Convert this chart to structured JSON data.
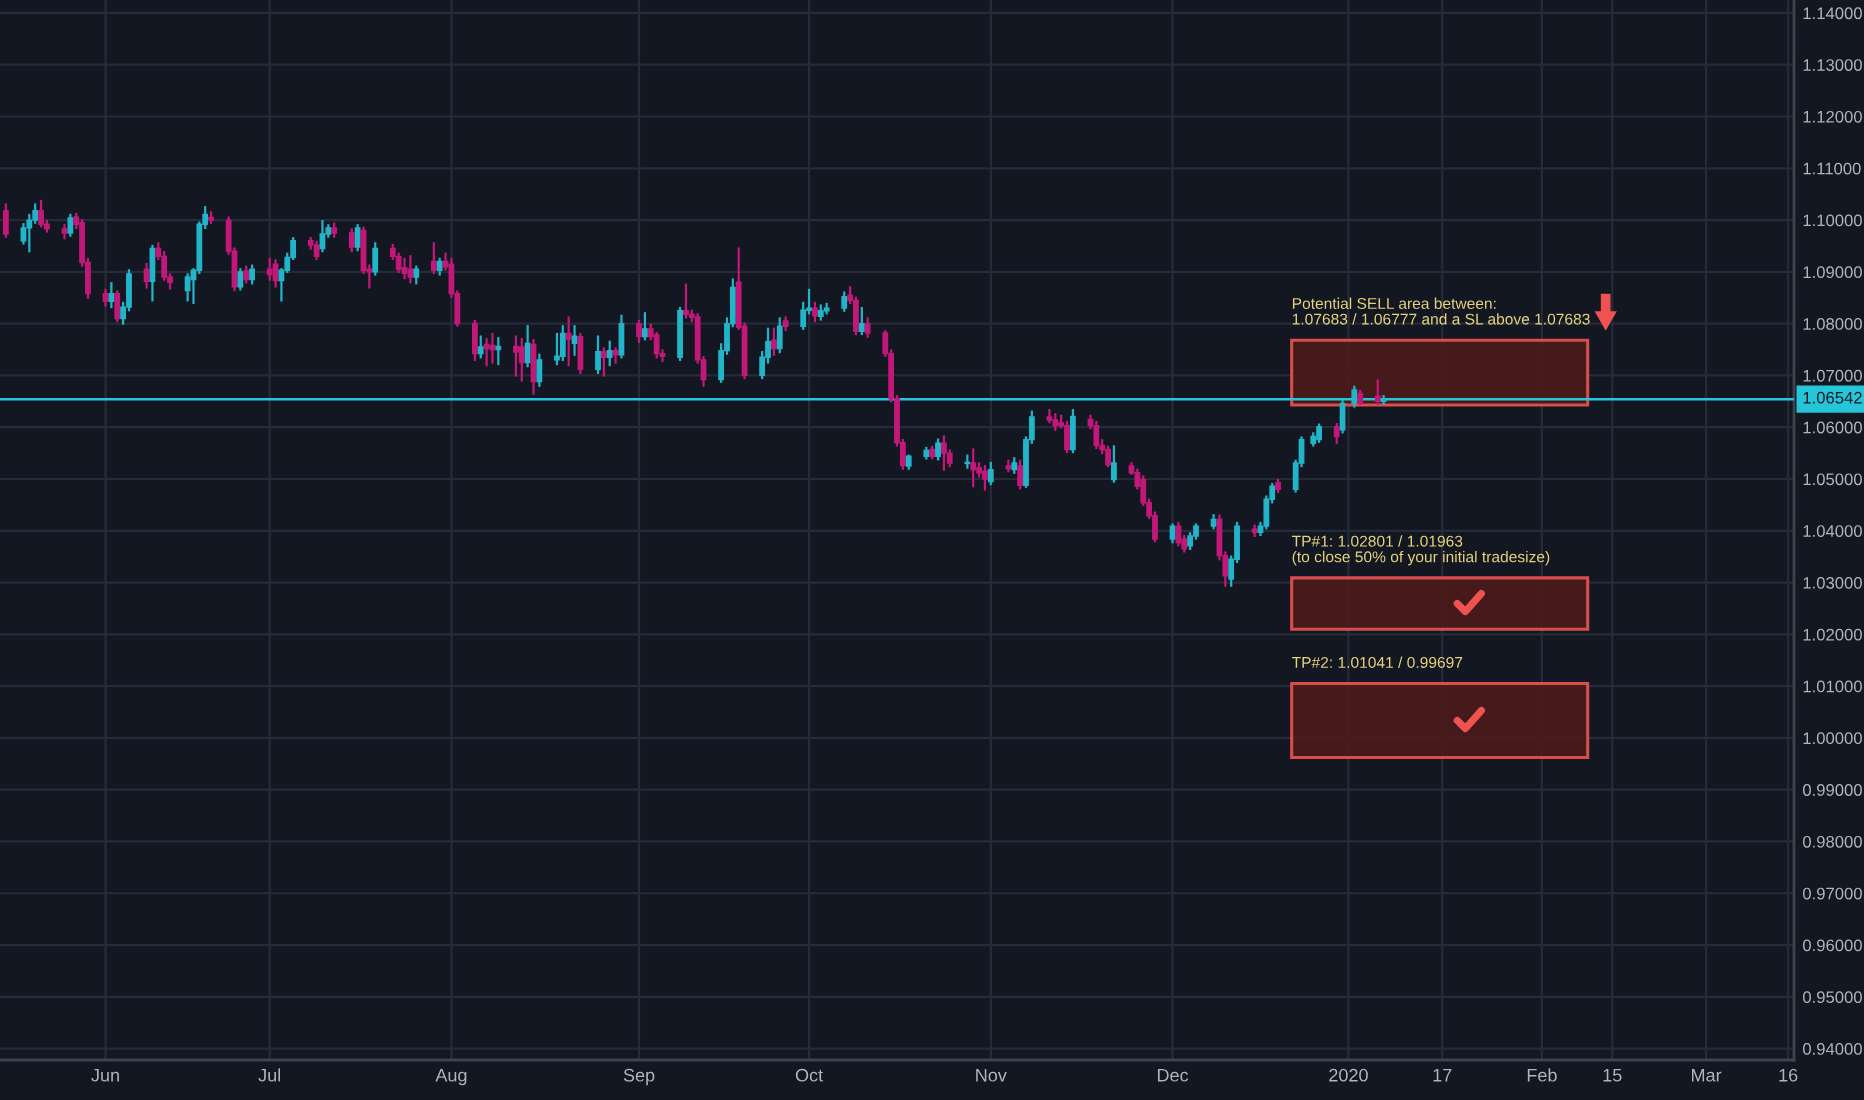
{
  "chart_data": {
    "type": "candlestick",
    "x": [
      "2019-05-17",
      "2019-05-20",
      "2019-05-21",
      "2019-05-22",
      "2019-05-23",
      "2019-05-24",
      "2019-05-27",
      "2019-05-28",
      "2019-05-29",
      "2019-05-30",
      "2019-05-31",
      "2019-06-03",
      "2019-06-04",
      "2019-06-05",
      "2019-06-06",
      "2019-06-07",
      "2019-06-10",
      "2019-06-11",
      "2019-06-12",
      "2019-06-13",
      "2019-06-14",
      "2019-06-17",
      "2019-06-18",
      "2019-06-19",
      "2019-06-20",
      "2019-06-21",
      "2019-06-24",
      "2019-06-25",
      "2019-06-26",
      "2019-06-27",
      "2019-06-28",
      "2019-07-01",
      "2019-07-02",
      "2019-07-03",
      "2019-07-04",
      "2019-07-05",
      "2019-07-08",
      "2019-07-09",
      "2019-07-10",
      "2019-07-11",
      "2019-07-12",
      "2019-07-15",
      "2019-07-16",
      "2019-07-17",
      "2019-07-18",
      "2019-07-19",
      "2019-07-22",
      "2019-07-23",
      "2019-07-24",
      "2019-07-25",
      "2019-07-26",
      "2019-07-29",
      "2019-07-30",
      "2019-07-31",
      "2019-08-01",
      "2019-08-02",
      "2019-08-05",
      "2019-08-06",
      "2019-08-07",
      "2019-08-08",
      "2019-08-09",
      "2019-08-12",
      "2019-08-13",
      "2019-08-14",
      "2019-08-15",
      "2019-08-16",
      "2019-08-19",
      "2019-08-20",
      "2019-08-21",
      "2019-08-22",
      "2019-08-23",
      "2019-08-26",
      "2019-08-27",
      "2019-08-28",
      "2019-08-29",
      "2019-08-30",
      "2019-09-02",
      "2019-09-03",
      "2019-09-04",
      "2019-09-05",
      "2019-09-06",
      "2019-09-09",
      "2019-09-10",
      "2019-09-11",
      "2019-09-12",
      "2019-09-13",
      "2019-09-16",
      "2019-09-17",
      "2019-09-18",
      "2019-09-19",
      "2019-09-20",
      "2019-09-23",
      "2019-09-24",
      "2019-09-25",
      "2019-09-26",
      "2019-09-27",
      "2019-09-30",
      "2019-10-01",
      "2019-10-02",
      "2019-10-03",
      "2019-10-04",
      "2019-10-07",
      "2019-10-08",
      "2019-10-09",
      "2019-10-10",
      "2019-10-11",
      "2019-10-14",
      "2019-10-15",
      "2019-10-16",
      "2019-10-17",
      "2019-10-18",
      "2019-10-21",
      "2019-10-22",
      "2019-10-23",
      "2019-10-24",
      "2019-10-25",
      "2019-10-28",
      "2019-10-29",
      "2019-10-30",
      "2019-10-31",
      "2019-11-01",
      "2019-11-04",
      "2019-11-05",
      "2019-11-06",
      "2019-11-07",
      "2019-11-08",
      "2019-11-11",
      "2019-11-12",
      "2019-11-13",
      "2019-11-14",
      "2019-11-15",
      "2019-11-18",
      "2019-11-19",
      "2019-11-20",
      "2019-11-21",
      "2019-11-22",
      "2019-11-25",
      "2019-11-26",
      "2019-11-27",
      "2019-11-28",
      "2019-11-29",
      "2019-12-02",
      "2019-12-03",
      "2019-12-04",
      "2019-12-05",
      "2019-12-06",
      "2019-12-09",
      "2019-12-10",
      "2019-12-11",
      "2019-12-12",
      "2019-12-13",
      "2019-12-16",
      "2019-12-17",
      "2019-12-18",
      "2019-12-19",
      "2019-12-20",
      "2019-12-23",
      "2019-12-24",
      "2019-12-26",
      "2019-12-27",
      "2019-12-30",
      "2019-12-31",
      "2020-01-02",
      "2020-01-03",
      "2020-01-06",
      "2020-01-07"
    ],
    "ohlc": [
      [
        1.1018,
        1.103,
        1.0968,
        1.0973
      ],
      [
        1.096,
        1.0992,
        1.0955,
        1.0985
      ],
      [
        1.0985,
        1.101,
        1.094,
        1.1
      ],
      [
        1.1,
        1.103,
        1.0995,
        1.1018
      ],
      [
        1.1018,
        1.1037,
        1.0988,
        1.0992
      ],
      [
        1.0992,
        1.0998,
        1.0978,
        1.0983
      ],
      [
        1.0983,
        1.099,
        1.0965,
        1.0975
      ],
      [
        1.0975,
        1.101,
        1.097,
        1.1004
      ],
      [
        1.1006,
        1.1012,
        1.0985,
        1.0992
      ],
      [
        1.0995,
        1.1,
        1.0912,
        1.0918
      ],
      [
        1.0918,
        1.0925,
        1.085,
        1.0858
      ],
      [
        1.0858,
        1.0865,
        1.0835,
        1.0843
      ],
      [
        1.0843,
        1.0878,
        1.0832,
        1.0858
      ],
      [
        1.0858,
        1.0862,
        1.0805,
        1.081
      ],
      [
        1.081,
        1.084,
        1.08,
        1.0832
      ],
      [
        1.0832,
        1.0903,
        1.0826,
        1.0896
      ],
      [
        1.0905,
        1.0915,
        1.087,
        1.0882
      ],
      [
        1.0882,
        1.095,
        1.0845,
        1.0945
      ],
      [
        1.0945,
        1.0955,
        1.0925,
        1.093
      ],
      [
        1.093,
        1.0938,
        1.0885,
        1.089
      ],
      [
        1.089,
        1.0895,
        1.0868,
        1.088
      ],
      [
        1.0864,
        1.0895,
        1.0845,
        1.089
      ],
      [
        1.0885,
        1.0905,
        1.084,
        1.0903
      ],
      [
        1.0903,
        1.0995,
        1.0898,
        1.0992
      ],
      [
        1.0992,
        1.1025,
        1.0985,
        1.1011
      ],
      [
        1.1005,
        1.1015,
        1.0995,
        1.1
      ],
      [
        1.1,
        1.1005,
        1.0935,
        1.094
      ],
      [
        1.094,
        1.0945,
        1.0865,
        1.0871
      ],
      [
        1.0871,
        1.0905,
        1.0866,
        1.09
      ],
      [
        1.0902,
        1.091,
        1.088,
        1.0885
      ],
      [
        1.0885,
        1.0912,
        1.0878,
        1.0905
      ],
      [
        1.0905,
        1.0925,
        1.0885,
        1.0895
      ],
      [
        1.0915,
        1.0922,
        1.0872,
        1.0883
      ],
      [
        1.0883,
        1.0905,
        1.0845,
        1.0903
      ],
      [
        1.0903,
        1.0935,
        1.09,
        1.0928
      ],
      [
        1.0928,
        1.0965,
        1.0925,
        1.096
      ],
      [
        1.096,
        1.0965,
        1.0945,
        1.0952
      ],
      [
        1.0952,
        1.0958,
        1.0925,
        1.093
      ],
      [
        1.0945,
        1.0998,
        1.094,
        1.0973
      ],
      [
        1.0973,
        1.099,
        1.0968,
        1.0985
      ],
      [
        1.0985,
        1.0993,
        1.0968,
        1.0975
      ],
      [
        1.0975,
        1.0982,
        1.094,
        1.0948
      ],
      [
        1.0948,
        1.099,
        1.0942,
        1.0985
      ],
      [
        1.098,
        1.0985,
        1.0898,
        1.0903
      ],
      [
        1.0905,
        1.0912,
        1.087,
        1.09
      ],
      [
        1.09,
        1.0955,
        1.0895,
        1.0945
      ],
      [
        1.0945,
        1.0952,
        1.0925,
        1.093
      ],
      [
        1.093,
        1.0935,
        1.09,
        1.0905
      ],
      [
        1.0908,
        1.0925,
        1.0888,
        1.0897
      ],
      [
        1.0905,
        1.093,
        1.088,
        1.089
      ],
      [
        1.089,
        1.091,
        1.0878,
        1.0905
      ],
      [
        1.092,
        1.0955,
        1.0898,
        1.0903
      ],
      [
        1.0903,
        1.0925,
        1.0895,
        1.092
      ],
      [
        1.092,
        1.0935,
        1.0905,
        1.091
      ],
      [
        1.0915,
        1.0925,
        1.0852,
        1.0858
      ],
      [
        1.0858,
        1.0862,
        1.0796,
        1.08
      ],
      [
        1.08,
        1.0805,
        1.073,
        1.0742
      ],
      [
        1.0742,
        1.0775,
        1.0735,
        1.0755
      ],
      [
        1.076,
        1.077,
        1.072,
        1.0752
      ],
      [
        1.0758,
        1.078,
        1.0725,
        1.075
      ],
      [
        1.075,
        1.0772,
        1.0722,
        1.0756
      ],
      [
        1.0756,
        1.0775,
        1.07,
        1.0745
      ],
      [
        1.0755,
        1.077,
        1.069,
        1.0725
      ],
      [
        1.0725,
        1.0795,
        1.0718,
        1.0762
      ],
      [
        1.076,
        1.0768,
        1.0665,
        1.0688
      ],
      [
        1.0688,
        1.074,
        1.068,
        1.073
      ],
      [
        1.073,
        1.078,
        1.0722,
        1.0737
      ],
      [
        1.0737,
        1.0795,
        1.073,
        1.0781
      ],
      [
        1.0781,
        1.0812,
        1.072,
        1.077
      ],
      [
        1.0762,
        1.0795,
        1.074,
        1.0776
      ],
      [
        1.0775,
        1.078,
        1.0705,
        1.0712
      ],
      [
        1.0712,
        1.0775,
        1.0705,
        1.0746
      ],
      [
        1.0746,
        1.0752,
        1.07,
        1.0735
      ],
      [
        1.0735,
        1.0765,
        1.072,
        1.0748
      ],
      [
        1.0748,
        1.0752,
        1.0725,
        1.074
      ],
      [
        1.074,
        1.0815,
        1.0735,
        1.08
      ],
      [
        1.08,
        1.0805,
        1.0765,
        1.0775
      ],
      [
        1.0775,
        1.082,
        1.077,
        1.079
      ],
      [
        1.079,
        1.0798,
        1.077,
        1.0775
      ],
      [
        1.0778,
        1.0782,
        1.0735,
        1.0742
      ],
      [
        1.0742,
        1.0748,
        1.0728,
        1.0737
      ],
      [
        1.0735,
        1.083,
        1.073,
        1.0825
      ],
      [
        1.0825,
        1.0875,
        1.0812,
        1.0818
      ],
      [
        1.0818,
        1.0825,
        1.0805,
        1.0812
      ],
      [
        1.0813,
        1.0818,
        1.0725,
        1.073
      ],
      [
        1.073,
        1.0735,
        1.068,
        1.0692
      ],
      [
        1.0692,
        1.076,
        1.0688,
        1.0748
      ],
      [
        1.0748,
        1.081,
        1.0742,
        1.08
      ],
      [
        1.08,
        1.0885,
        1.0795,
        1.087
      ],
      [
        1.088,
        1.0945,
        1.079,
        1.0793
      ],
      [
        1.0795,
        1.08,
        1.0695,
        1.07
      ],
      [
        1.07,
        1.0745,
        1.0695,
        1.0735
      ],
      [
        1.0735,
        1.079,
        1.0725,
        1.0765
      ],
      [
        1.0768,
        1.079,
        1.074,
        1.0752
      ],
      [
        1.0752,
        1.081,
        1.0745,
        1.0795
      ],
      [
        1.0805,
        1.0812,
        1.0788,
        1.0795
      ],
      [
        1.0795,
        1.084,
        1.079,
        1.0826
      ],
      [
        1.0826,
        1.0865,
        1.082,
        1.083
      ],
      [
        1.083,
        1.084,
        1.0805,
        1.0815
      ],
      [
        1.0814,
        1.0835,
        1.0808,
        1.0825
      ],
      [
        1.0825,
        1.0838,
        1.082,
        1.083
      ],
      [
        1.083,
        1.086,
        1.0825,
        1.0852
      ],
      [
        1.0855,
        1.087,
        1.084,
        1.0845
      ],
      [
        1.0845,
        1.085,
        1.078,
        1.0785
      ],
      [
        1.0785,
        1.083,
        1.078,
        1.08
      ],
      [
        1.08,
        1.081,
        1.0775,
        1.0782
      ],
      [
        1.0782,
        1.0785,
        1.0738,
        1.0742
      ],
      [
        1.0742,
        1.0748,
        1.065,
        1.0655
      ],
      [
        1.0655,
        1.066,
        1.0565,
        1.057
      ],
      [
        1.057,
        1.0575,
        1.052,
        1.0526
      ],
      [
        1.0525,
        1.0545,
        1.052,
        1.0544
      ],
      [
        1.0544,
        1.056,
        1.054,
        1.0555
      ],
      [
        1.0557,
        1.0562,
        1.054,
        1.0544
      ],
      [
        1.0544,
        1.0576,
        1.0538,
        1.0569
      ],
      [
        1.0569,
        1.0582,
        1.0518,
        1.055
      ],
      [
        1.055,
        1.0555,
        1.0525,
        1.0531
      ],
      [
        1.053,
        1.0545,
        1.0522,
        1.0532
      ],
      [
        1.0531,
        1.0557,
        1.0486,
        1.0518
      ],
      [
        1.0522,
        1.053,
        1.0505,
        1.0512
      ],
      [
        1.0515,
        1.0525,
        1.048,
        1.05
      ],
      [
        1.0495,
        1.0531,
        1.049,
        1.0518
      ],
      [
        1.0525,
        1.0535,
        1.0515,
        1.052
      ],
      [
        1.0518,
        1.054,
        1.0512,
        1.0531
      ],
      [
        1.0525,
        1.0535,
        1.0482,
        1.0488
      ],
      [
        1.0488,
        1.058,
        1.0485,
        1.0576
      ],
      [
        1.0576,
        1.063,
        1.057,
        1.062
      ],
      [
        1.062,
        1.0633,
        1.061,
        1.0614
      ],
      [
        1.0614,
        1.0625,
        1.0595,
        1.0603
      ],
      [
        1.0608,
        1.0622,
        1.06,
        1.0603
      ],
      [
        1.0603,
        1.061,
        1.0552,
        1.0557
      ],
      [
        1.0557,
        1.0633,
        1.0552,
        1.0621
      ],
      [
        1.0615,
        1.0622,
        1.0598,
        1.0603
      ],
      [
        1.0603,
        1.061,
        1.056,
        1.0565
      ],
      [
        1.0565,
        1.0575,
        1.055,
        1.0557
      ],
      [
        1.0557,
        1.0562,
        1.0525,
        1.0528
      ],
      [
        1.0499,
        1.0563,
        1.0495,
        1.0531
      ],
      [
        1.0525,
        1.053,
        1.051,
        1.0512
      ],
      [
        1.0512,
        1.0518,
        1.0482,
        1.0486
      ],
      [
        1.0499,
        1.0505,
        1.045,
        1.0454
      ],
      [
        1.0454,
        1.046,
        1.0425,
        1.0429
      ],
      [
        1.0429,
        1.0435,
        1.038,
        1.0384
      ],
      [
        1.0384,
        1.0412,
        1.0378,
        1.0409
      ],
      [
        1.0409,
        1.0415,
        1.0372,
        1.0377
      ],
      [
        1.0384,
        1.039,
        1.036,
        1.0365
      ],
      [
        1.0371,
        1.0395,
        1.0365,
        1.039
      ],
      [
        1.039,
        1.0412,
        1.0385,
        1.0409
      ],
      [
        1.0409,
        1.043,
        1.0405,
        1.0422
      ],
      [
        1.0422,
        1.0429,
        1.0345,
        1.0352
      ],
      [
        1.0352,
        1.0358,
        1.0294,
        1.0313
      ],
      [
        1.0307,
        1.035,
        1.0294,
        1.0345
      ],
      [
        1.0345,
        1.0415,
        1.034,
        1.0409
      ],
      [
        1.0403,
        1.041,
        1.039,
        1.0397
      ],
      [
        1.0397,
        1.0415,
        1.0392,
        1.0409
      ],
      [
        1.0409,
        1.0466,
        1.0405,
        1.0461
      ],
      [
        1.0461,
        1.049,
        1.0455,
        1.0486
      ],
      [
        1.0493,
        1.0498,
        1.0475,
        1.048
      ],
      [
        1.048,
        1.0535,
        1.0476,
        1.0531
      ],
      [
        1.0531,
        1.058,
        1.0525,
        1.0576
      ],
      [
        1.0569,
        1.0588,
        1.0565,
        1.0582
      ],
      [
        1.0576,
        1.0605,
        1.0572,
        1.0601
      ],
      [
        1.0601,
        1.0606,
        1.057,
        1.0582
      ],
      [
        1.0595,
        1.065,
        1.059,
        1.0646
      ],
      [
        1.0646,
        1.0678,
        1.064,
        1.0672
      ],
      [
        1.0665,
        1.067,
        1.0645,
        1.0646
      ],
      [
        1.066,
        1.069,
        1.0645,
        1.065
      ],
      [
        1.065,
        1.066,
        1.0646,
        1.0654
      ]
    ],
    "colors": [
      "#c2187a",
      "#22b5c9",
      "#22b5c9",
      "#22b5c9",
      "#c2187a",
      "#c2187a",
      "#c2187a",
      "#22b5c9",
      "#c2187a",
      "#c2187a",
      "#c2187a",
      "#c2187a",
      "#22b5c9",
      "#c2187a",
      "#22b5c9",
      "#22b5c9",
      "#c2187a",
      "#22b5c9",
      "#c2187a",
      "#c2187a",
      "#c2187a",
      "#22b5c9",
      "#22b5c9",
      "#22b5c9",
      "#22b5c9",
      "#c2187a",
      "#c2187a",
      "#c2187a",
      "#22b5c9",
      "#c2187a",
      "#22b5c9",
      "#c2187a",
      "#c2187a",
      "#22b5c9",
      "#22b5c9",
      "#22b5c9",
      "#c2187a",
      "#c2187a",
      "#22b5c9",
      "#22b5c9",
      "#c2187a",
      "#c2187a",
      "#22b5c9",
      "#c2187a",
      "#c2187a",
      "#22b5c9",
      "#c2187a",
      "#c2187a",
      "#c2187a",
      "#c2187a",
      "#22b5c9",
      "#c2187a",
      "#22b5c9",
      "#c2187a",
      "#c2187a",
      "#c2187a",
      "#c2187a",
      "#22b5c9",
      "#c2187a",
      "#c2187a",
      "#22b5c9",
      "#c2187a",
      "#c2187a",
      "#22b5c9",
      "#c2187a",
      "#22b5c9",
      "#22b5c9",
      "#22b5c9",
      "#c2187a",
      "#22b5c9",
      "#c2187a",
      "#22b5c9",
      "#c2187a",
      "#22b5c9",
      "#c2187a",
      "#22b5c9",
      "#c2187a",
      "#22b5c9",
      "#c2187a",
      "#c2187a",
      "#c2187a",
      "#22b5c9",
      "#c2187a",
      "#c2187a",
      "#c2187a",
      "#c2187a",
      "#22b5c9",
      "#22b5c9",
      "#22b5c9",
      "#c2187a",
      "#c2187a",
      "#22b5c9",
      "#22b5c9",
      "#c2187a",
      "#22b5c9",
      "#c2187a",
      "#22b5c9",
      "#22b5c9",
      "#c2187a",
      "#22b5c9",
      "#22b5c9",
      "#22b5c9",
      "#c2187a",
      "#c2187a",
      "#22b5c9",
      "#c2187a",
      "#c2187a",
      "#c2187a",
      "#c2187a",
      "#c2187a",
      "#22b5c9",
      "#22b5c9",
      "#c2187a",
      "#22b5c9",
      "#c2187a",
      "#c2187a",
      "#22b5c9",
      "#c2187a",
      "#c2187a",
      "#c2187a",
      "#22b5c9",
      "#c2187a",
      "#22b5c9",
      "#c2187a",
      "#22b5c9",
      "#22b5c9",
      "#c2187a",
      "#c2187a",
      "#c2187a",
      "#c2187a",
      "#22b5c9",
      "#c2187a",
      "#c2187a",
      "#c2187a",
      "#c2187a",
      "#22b5c9",
      "#c2187a",
      "#c2187a",
      "#c2187a",
      "#c2187a",
      "#c2187a",
      "#22b5c9",
      "#c2187a",
      "#c2187a",
      "#22b5c9",
      "#22b5c9",
      "#22b5c9",
      "#c2187a",
      "#c2187a",
      "#22b5c9",
      "#22b5c9",
      "#c2187a",
      "#22b5c9",
      "#22b5c9",
      "#22b5c9",
      "#c2187a",
      "#22b5c9",
      "#22b5c9",
      "#22b5c9",
      "#22b5c9",
      "#c2187a",
      "#22b5c9",
      "#22b5c9",
      "#c2187a",
      "#c2187a",
      "#22b5c9"
    ],
    "xlim": [
      "2019-05-16",
      "2020-03-17"
    ],
    "xticks": [
      {
        "value": "2019-06-03",
        "label": "Jun"
      },
      {
        "value": "2019-07-01",
        "label": "Jul"
      },
      {
        "value": "2019-08-01",
        "label": "Aug"
      },
      {
        "value": "2019-09-02",
        "label": "Sep"
      },
      {
        "value": "2019-10-01",
        "label": "Oct"
      },
      {
        "value": "2019-11-01",
        "label": "Nov"
      },
      {
        "value": "2019-12-02",
        "label": "Dec"
      },
      {
        "value": "2020-01-01",
        "label": "2020"
      },
      {
        "value": "2020-01-17",
        "label": "17"
      },
      {
        "value": "2020-02-03",
        "label": "Feb"
      },
      {
        "value": "2020-02-15",
        "label": "15"
      },
      {
        "value": "2020-03-02",
        "label": "Mar"
      },
      {
        "value": "2020-03-16",
        "label": "16"
      }
    ],
    "ylim": [
      0.9378,
      1.1425
    ],
    "yticks": [
      {
        "value": 0.94,
        "label": "0.94000"
      },
      {
        "value": 0.95,
        "label": "0.95000"
      },
      {
        "value": 0.96,
        "label": "0.96000"
      },
      {
        "value": 0.97,
        "label": "0.97000"
      },
      {
        "value": 0.98,
        "label": "0.98000"
      },
      {
        "value": 0.99,
        "label": "0.99000"
      },
      {
        "value": 1.0,
        "label": "1.00000"
      },
      {
        "value": 1.01,
        "label": "1.01000"
      },
      {
        "value": 1.02,
        "label": "1.02000"
      },
      {
        "value": 1.03,
        "label": "1.03000"
      },
      {
        "value": 1.04,
        "label": "1.04000"
      },
      {
        "value": 1.05,
        "label": "1.05000"
      },
      {
        "value": 1.06,
        "label": "1.06000"
      },
      {
        "value": 1.07,
        "label": "1.07000"
      },
      {
        "value": 1.08,
        "label": "1.08000"
      },
      {
        "value": 1.09,
        "label": "1.09000"
      },
      {
        "value": 1.1,
        "label": "1.10000"
      },
      {
        "value": 1.11,
        "label": "1.11000"
      },
      {
        "value": 1.12,
        "label": "1.12000"
      },
      {
        "value": 1.13,
        "label": "1.13000"
      },
      {
        "value": 1.14,
        "label": "1.14000"
      }
    ],
    "grid": true,
    "ref_lines": [
      {
        "axis": "y",
        "value": 1.06542,
        "label": "1.06542",
        "color": "#26c6da"
      }
    ],
    "bands": [
      {
        "axis": "y",
        "from": 1.0643,
        "to": 1.0768,
        "label": "Potential SELL area between:\n1.07683 / 1.06777 and a SL above 1.07683",
        "color": "#ef5350"
      },
      {
        "axis": "y",
        "from": 1.021,
        "to": 1.0309,
        "label": "TP#1: 1.02801 / 1.01963\n(to close 50% of your initial tradesize)",
        "color": "#ef5350"
      },
      {
        "axis": "y",
        "from": 0.9962,
        "to": 1.0105,
        "label": "TP#2: 1.01041 / 0.99697",
        "color": "#ef5350"
      }
    ]
  }
}
